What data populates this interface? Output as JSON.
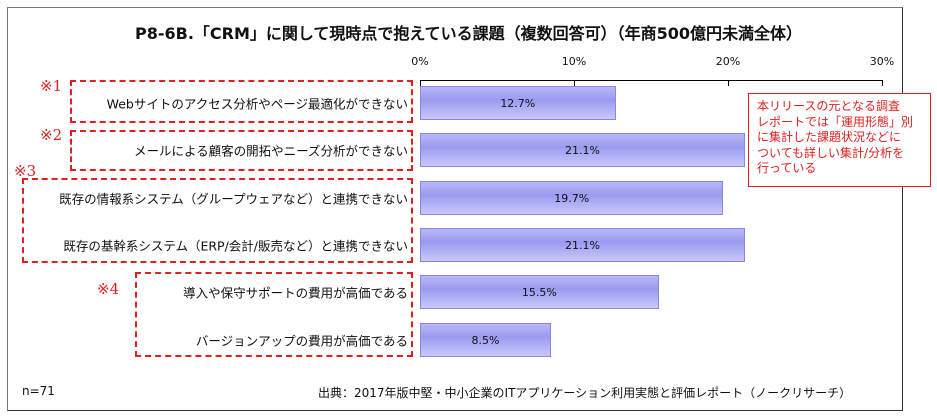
{
  "chart_data": {
    "type": "bar",
    "orientation": "horizontal",
    "title": "P8-6B.「CRM」に関して現時点で抱えている課題（複数回答可）（年商500億円未満全体）",
    "categories": [
      "Webサイトのアクセス分析やページ最適化ができない",
      "メールによる顧客の開拓やニーズ分析ができない",
      "既存の情報系システム（グループウェアなど）と連携できない",
      "既存の基幹系システム（ERP/会計/販売など）と連携できない",
      "導入や保守サポートの費用が高価である",
      "バージョンアップの費用が高価である"
    ],
    "values": [
      12.7,
      21.1,
      19.7,
      21.1,
      15.5,
      8.5
    ],
    "value_labels": [
      "12.7%",
      "21.1%",
      "19.7%",
      "21.1%",
      "15.5%",
      "8.5%"
    ],
    "xlim": [
      0,
      30
    ],
    "ticks": [
      "0%",
      "10%",
      "20%",
      "30%"
    ],
    "markers": [
      "※1",
      "※2",
      "※3",
      "※4"
    ]
  },
  "note": "本リリースの元となる調査\nレポートでは「運用形態」別\nに集計した課題状況などに\nついても詳しい集計/分析を\n行っている",
  "n_label": "n=71",
  "source": "出典：2017年版中堅・中小企業のITアプリケーション利用実態と評価レポート（ノークリサーチ）",
  "colors": {
    "bar": "#9a9af0",
    "accent": "#e02020"
  }
}
